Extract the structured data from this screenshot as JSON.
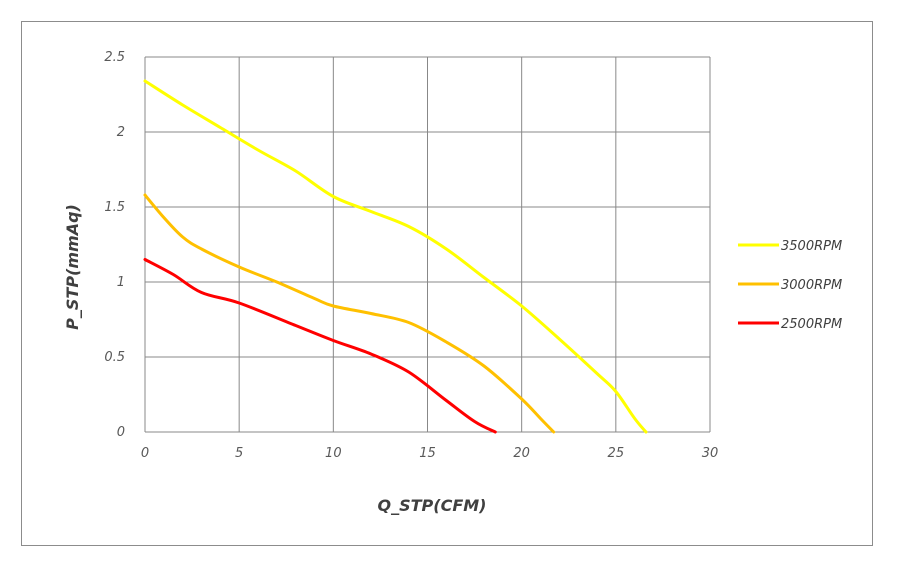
{
  "chart_data": {
    "type": "line",
    "title": "",
    "xlabel": "Q_STP(CFM)",
    "ylabel": "P_STP(mmAq)",
    "xlim": [
      0,
      30
    ],
    "ylim": [
      0,
      2.5
    ],
    "xticks": [
      0,
      5,
      10,
      15,
      20,
      25,
      30
    ],
    "yticks": [
      0,
      0.5,
      1,
      1.5,
      2,
      2.5
    ],
    "xtick_labels": [
      "0",
      "5",
      "10",
      "15",
      "20",
      "25",
      "30"
    ],
    "ytick_labels": [
      "0",
      "0.5",
      "1",
      "1.5",
      "2",
      "2.5"
    ],
    "grid": true,
    "legend_position": "right",
    "series": [
      {
        "name": "3500RPM",
        "color": "#ffff00",
        "points": [
          [
            0,
            2.34
          ],
          [
            2,
            2.18
          ],
          [
            4,
            2.03
          ],
          [
            6,
            1.88
          ],
          [
            8,
            1.74
          ],
          [
            10,
            1.57
          ],
          [
            12,
            1.47
          ],
          [
            14,
            1.37
          ],
          [
            16,
            1.22
          ],
          [
            18,
            1.03
          ],
          [
            20,
            0.84
          ],
          [
            22,
            0.62
          ],
          [
            24,
            0.39
          ],
          [
            25,
            0.27
          ],
          [
            26,
            0.09
          ],
          [
            26.6,
            0
          ]
        ]
      },
      {
        "name": "3000RPM",
        "color": "#ffc000",
        "points": [
          [
            0,
            1.58
          ],
          [
            1,
            1.43
          ],
          [
            2,
            1.3
          ],
          [
            3,
            1.22
          ],
          [
            5,
            1.1
          ],
          [
            7,
            1.0
          ],
          [
            9,
            0.89
          ],
          [
            10,
            0.84
          ],
          [
            12,
            0.79
          ],
          [
            14,
            0.73
          ],
          [
            16,
            0.6
          ],
          [
            18,
            0.44
          ],
          [
            20,
            0.22
          ],
          [
            21,
            0.09
          ],
          [
            21.7,
            0
          ]
        ]
      },
      {
        "name": "2500RPM",
        "color": "#ff0000",
        "points": [
          [
            0,
            1.15
          ],
          [
            1.5,
            1.05
          ],
          [
            3,
            0.93
          ],
          [
            5,
            0.86
          ],
          [
            8,
            0.71
          ],
          [
            10,
            0.61
          ],
          [
            12,
            0.52
          ],
          [
            14,
            0.4
          ],
          [
            16,
            0.21
          ],
          [
            17.5,
            0.07
          ],
          [
            18.6,
            0
          ]
        ]
      }
    ]
  }
}
